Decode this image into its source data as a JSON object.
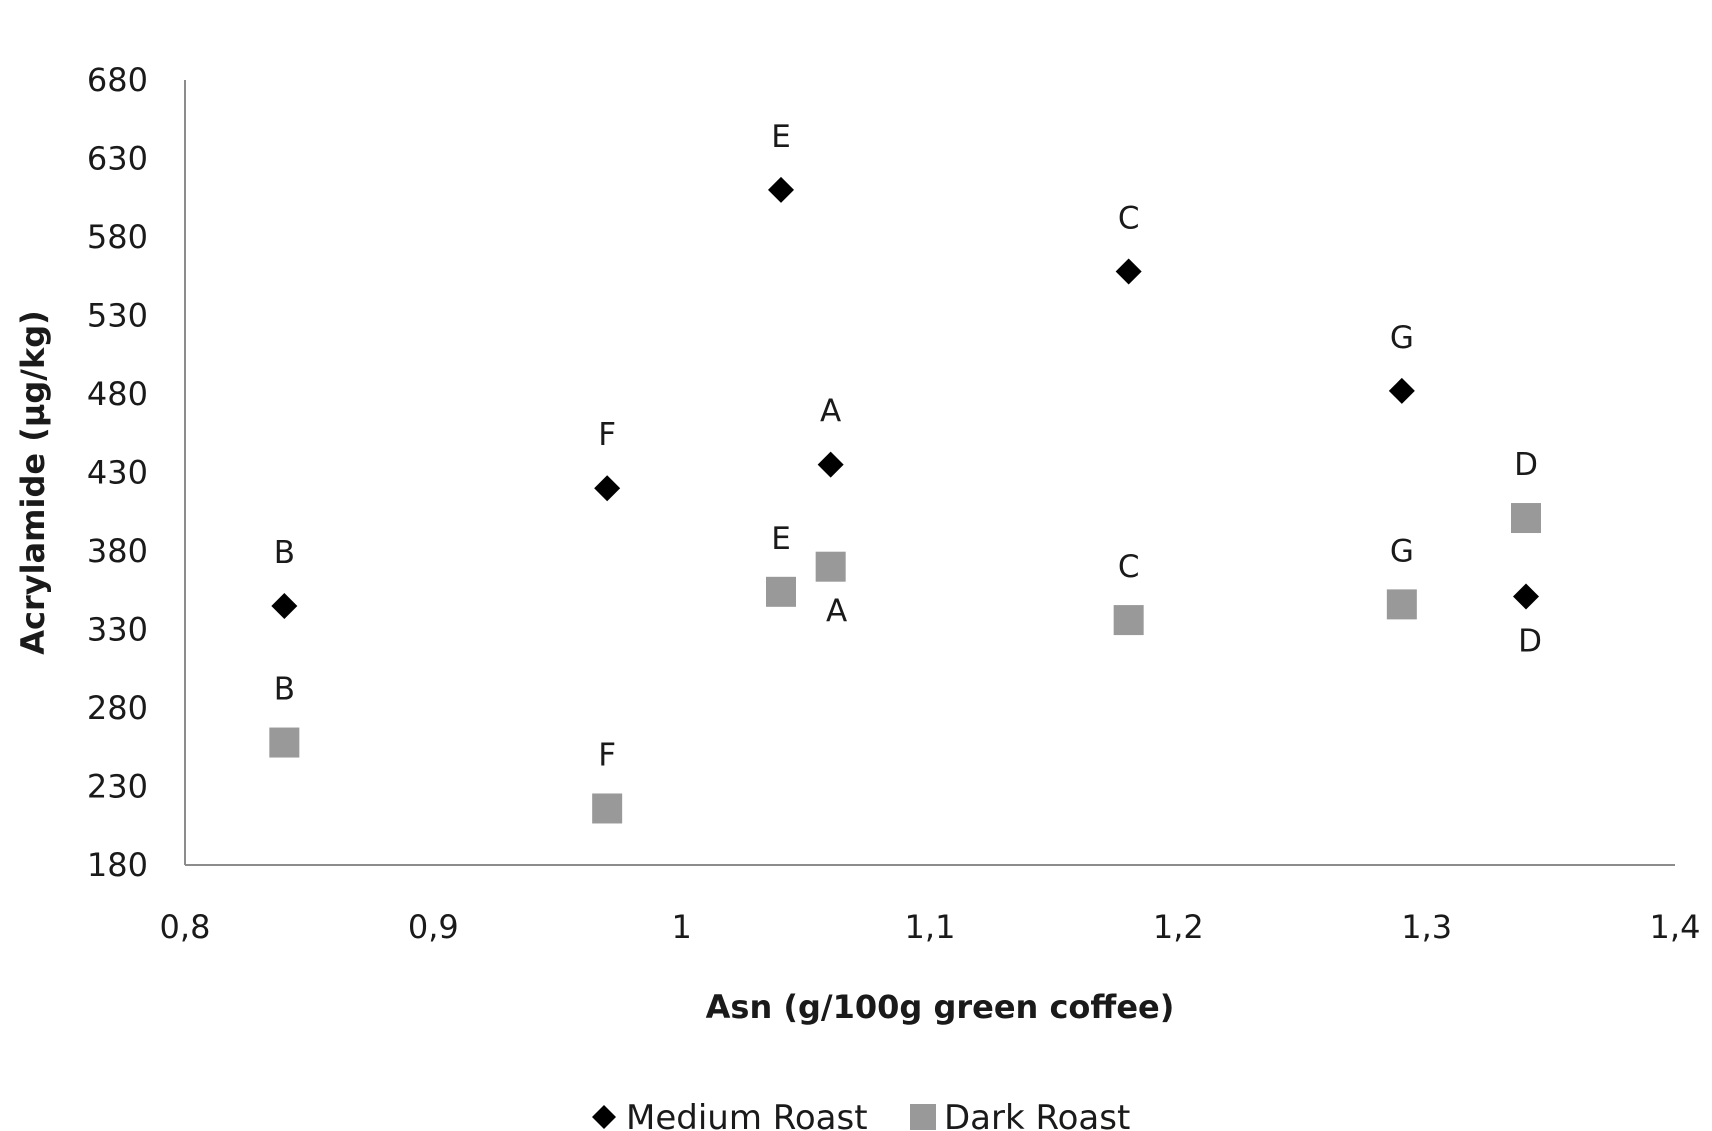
{
  "chart_data": {
    "type": "scatter",
    "title": "",
    "xlabel": "Asn (g/100g green coffee)",
    "ylabel": "Acrylamide (µg/kg)",
    "xlim": [
      0.8,
      1.4
    ],
    "ylim": [
      180,
      680
    ],
    "x_ticks": [
      "0,8",
      "0,9",
      "1",
      "1,1",
      "1,2",
      "1,3",
      "1,4"
    ],
    "y_ticks": [
      "180",
      "230",
      "280",
      "330",
      "380",
      "430",
      "480",
      "530",
      "580",
      "630",
      "680"
    ],
    "grid": false,
    "legend_position": "bottom",
    "series": [
      {
        "name": "Medium Roast",
        "marker": "diamond",
        "color": "#000000",
        "points": [
          {
            "label": "B",
            "x": 0.84,
            "y": 345
          },
          {
            "label": "F",
            "x": 0.97,
            "y": 420
          },
          {
            "label": "E",
            "x": 1.04,
            "y": 610
          },
          {
            "label": "A",
            "x": 1.06,
            "y": 435
          },
          {
            "label": "C",
            "x": 1.18,
            "y": 558
          },
          {
            "label": "G",
            "x": 1.29,
            "y": 482
          },
          {
            "label": "D",
            "x": 1.34,
            "y": 351
          }
        ]
      },
      {
        "name": "Dark Roast",
        "marker": "square",
        "color": "#999999",
        "points": [
          {
            "label": "B",
            "x": 0.84,
            "y": 258
          },
          {
            "label": "F",
            "x": 0.97,
            "y": 216
          },
          {
            "label": "E",
            "x": 1.04,
            "y": 354
          },
          {
            "label": "A",
            "x": 1.06,
            "y": 370
          },
          {
            "label": "C",
            "x": 1.18,
            "y": 336
          },
          {
            "label": "G",
            "x": 1.29,
            "y": 346
          },
          {
            "label": "D",
            "x": 1.34,
            "y": 401
          }
        ]
      }
    ]
  }
}
